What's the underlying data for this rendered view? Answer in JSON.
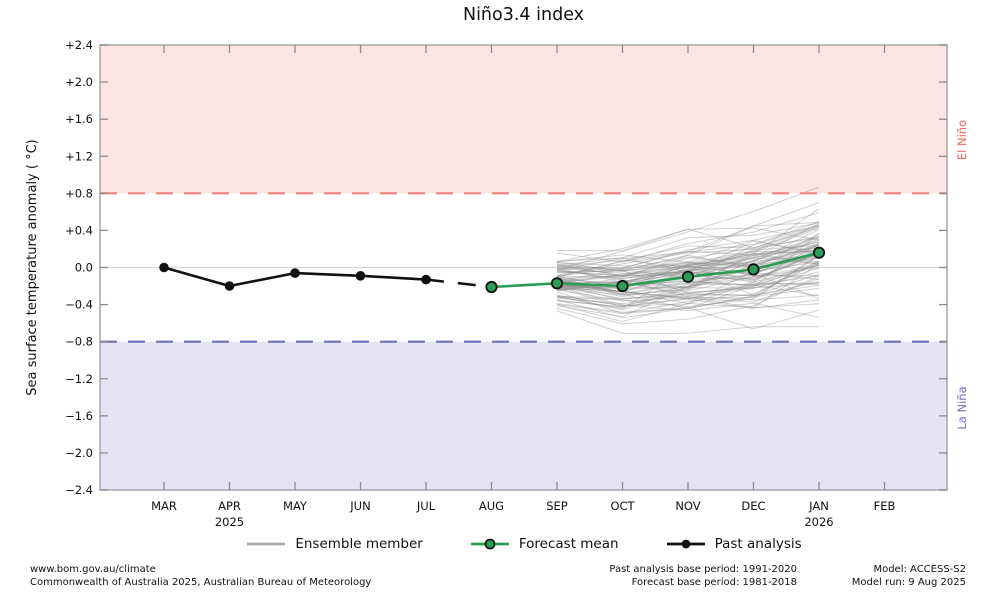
{
  "title": "Niño3.4 index",
  "chart_data": {
    "type": "line",
    "title": "Niño3.4 index",
    "ylabel": "Sea surface temperature anomaly ( °C)",
    "ylim": [
      -2.4,
      2.4
    ],
    "ytick_step": 0.4,
    "ytick_values": [
      2.4,
      2.0,
      1.6,
      1.2,
      0.8,
      0.4,
      0.0,
      -0.4,
      -0.8,
      -1.2,
      -1.6,
      -2.0,
      -2.4
    ],
    "ytick_labels": [
      "+2.4",
      "+2.0",
      "+1.6",
      "+1.2",
      "+0.8",
      "+0.4",
      "0.0",
      "−0.4",
      "−0.8",
      "−1.2",
      "−1.6",
      "−2.0",
      "−2.4"
    ],
    "categories": [
      "MAR",
      "APR",
      "MAY",
      "JUN",
      "JUL",
      "AUG",
      "SEP",
      "OCT",
      "NOV",
      "DEC",
      "JAN",
      "FEB"
    ],
    "year_labels": [
      {
        "index": 1,
        "text": "2025"
      },
      {
        "index": 10,
        "text": "2026"
      }
    ],
    "grid": "zero line only",
    "legend_position": "bottom-center",
    "regions": [
      {
        "label": "El Niño",
        "from": 0.8,
        "to": 2.4,
        "fill": "#fbe5e2",
        "threshold": 0.8,
        "threshold_color": "#f4817b",
        "label_color": "#e8695e"
      },
      {
        "label": "La Niña",
        "from": -2.4,
        "to": -0.8,
        "fill": "#e4e4f6",
        "threshold": -0.8,
        "threshold_color": "#6b6bbd",
        "label_color": "#6f6fbe"
      }
    ],
    "series": [
      {
        "name": "Past analysis",
        "color": "#111111",
        "marker": "filled-circle",
        "x_categories": [
          "MAR",
          "APR",
          "MAY",
          "JUN",
          "JUL"
        ],
        "values": [
          0.0,
          -0.2,
          -0.06,
          -0.09,
          -0.13
        ]
      },
      {
        "name": "Forecast mean",
        "color": "#2a9d57",
        "marker": "black-edged-circle",
        "x_categories": [
          "AUG",
          "SEP",
          "OCT",
          "NOV",
          "DEC",
          "JAN"
        ],
        "values": [
          -0.21,
          -0.17,
          -0.2,
          -0.1,
          -0.02,
          0.16
        ]
      }
    ],
    "connector": {
      "style": "dashed",
      "color": "#111111",
      "from_category": "JUL",
      "from_value": -0.13,
      "to_category": "AUG",
      "to_value": -0.21
    },
    "ensemble": {
      "name": "Ensemble member",
      "color": "#8c8c8c",
      "opacity": 0.4,
      "count": 90,
      "x_categories": [
        "SEP",
        "OCT",
        "NOV",
        "DEC",
        "JAN"
      ],
      "mean_path": [
        -0.16,
        -0.19,
        -0.09,
        -0.01,
        0.17
      ],
      "spread_sd": [
        0.15,
        0.21,
        0.24,
        0.27,
        0.31
      ],
      "envelope_min": [
        -0.53,
        -0.75,
        -0.72,
        -0.7,
        -0.68
      ],
      "envelope_max": [
        0.27,
        0.4,
        0.55,
        0.7,
        1.1
      ]
    }
  },
  "legend": {
    "items": [
      {
        "label": "Ensemble member",
        "swatch": "gray-line"
      },
      {
        "label": "Forecast mean",
        "swatch": "green-line-circle"
      },
      {
        "label": "Past analysis",
        "swatch": "black-line-dot"
      }
    ]
  },
  "footer": {
    "left_line1": "www.bom.gov.au/climate",
    "left_line2": "Commonwealth of Australia 2025, Australian Bureau of Meteorology",
    "center_line1": "Past analysis base period: 1991-2020",
    "center_line2": "Forecast base period: 1981-2018",
    "right_line1": "Model: ACCESS-S2",
    "right_line2": "Model run: 9 Aug 2025"
  }
}
